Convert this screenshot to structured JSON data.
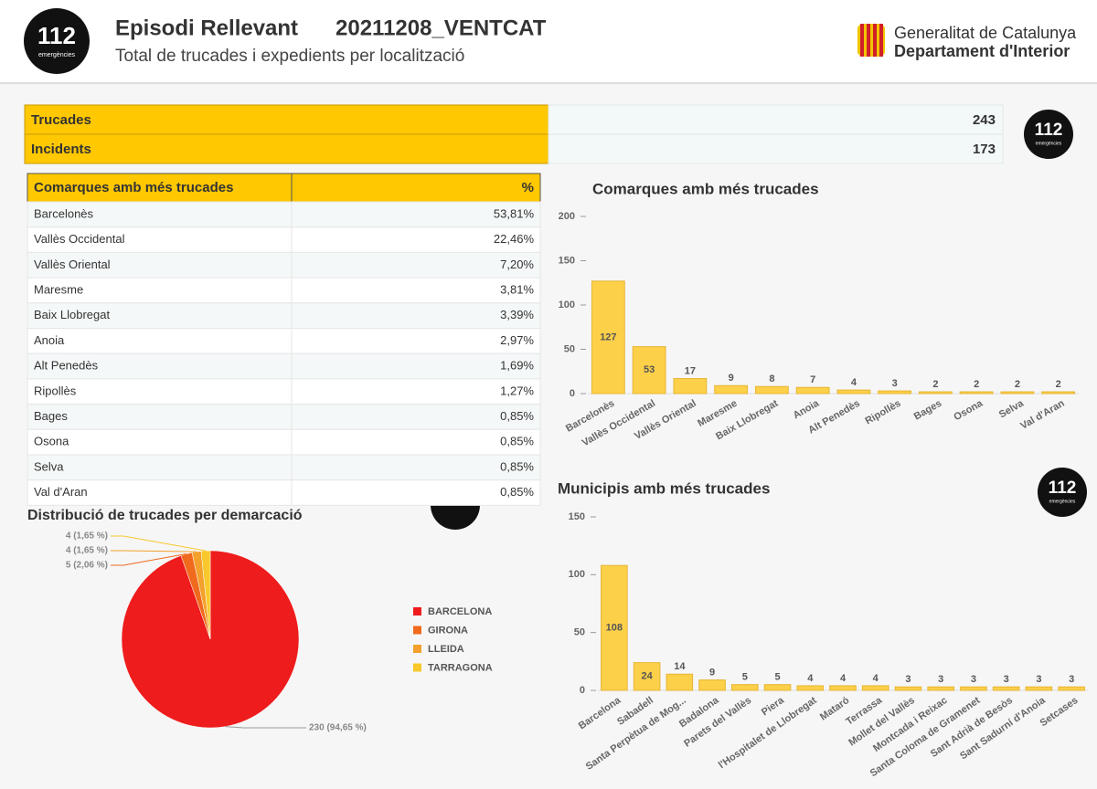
{
  "header": {
    "title": "Episodi Rellevant",
    "code": "20211208_VENTCAT",
    "subtitle": "Total de trucades i expedients per localització"
  },
  "logo": {
    "number": "112",
    "tag": "emergències"
  },
  "org": {
    "name": "Generalitat de Catalunya",
    "department": "Departament d'Interior"
  },
  "summary": {
    "rows": [
      [
        "Trucades",
        "243"
      ],
      [
        "Incidents",
        "173"
      ]
    ]
  },
  "table": {
    "header": [
      "Comarques amb més trucades",
      "%"
    ],
    "rows": [
      [
        "Barcelonès",
        "53,81%"
      ],
      [
        "Vallès Occidental",
        "22,46%"
      ],
      [
        "Vallès Oriental",
        "7,20%"
      ],
      [
        "Maresme",
        "3,81%"
      ],
      [
        "Baix Llobregat",
        "3,39%"
      ],
      [
        "Anoia",
        "2,97%"
      ],
      [
        "Alt Penedès",
        "1,69%"
      ],
      [
        "Ripollès",
        "1,27%"
      ],
      [
        "Bages",
        "0,85%"
      ],
      [
        "Osona",
        "0,85%"
      ],
      [
        "Selva",
        "0,85%"
      ],
      [
        "Val d'Aran",
        "0,85%"
      ]
    ]
  },
  "chart_data": [
    {
      "type": "bar",
      "title": "Comarques amb més trucades",
      "categories": [
        "Barcelonès",
        "Vallès Occidental",
        "Vallès Oriental",
        "Maresme",
        "Baix Llobregat",
        "Anoia",
        "Alt Penedès",
        "Ripollès",
        "Bages",
        "Osona",
        "Selva",
        "Val d'Aran"
      ],
      "values": [
        127,
        53,
        17,
        9,
        8,
        7,
        4,
        3,
        2,
        2,
        2,
        2
      ],
      "color": "#fdd04a",
      "ylim": [
        0,
        200
      ],
      "yticks": [
        0,
        50,
        100,
        150,
        200
      ]
    },
    {
      "type": "bar",
      "title": "Municipis amb més trucades",
      "categories": [
        "Barcelona",
        "Sabadell",
        "Santa Perpètua de Mog...",
        "Badalona",
        "Parets del Vallès",
        "Piera",
        "l'Hospitalet de Llobregat",
        "Mataró",
        "Terrassa",
        "Mollet del Vallès",
        "Montcada i Reixac",
        "Santa Coloma de Gramenet",
        "Sant Adrià de Besòs",
        "Sant Sadurní d'Anoia",
        "Setcases"
      ],
      "values": [
        108,
        24,
        14,
        9,
        5,
        5,
        4,
        4,
        4,
        3,
        3,
        3,
        3,
        3,
        3
      ],
      "color": "#fdd04a",
      "ylim": [
        0,
        150
      ],
      "yticks": [
        0,
        50,
        100,
        150
      ]
    },
    {
      "type": "pie",
      "title": "Distribució de trucades per demarcació",
      "categories": [
        "BARCELONA",
        "GIRONA",
        "LLEIDA",
        "TARRAGONA"
      ],
      "values": [
        230,
        5,
        4,
        4
      ],
      "value_labels": [
        "230 (94,65 %)",
        "5 (2,06 %)",
        "4 (1,65 %)",
        "4 (1,65 %)"
      ],
      "colors": [
        "#ee1c1c",
        "#f06a1e",
        "#f3a02c",
        "#f8c82c"
      ]
    }
  ]
}
